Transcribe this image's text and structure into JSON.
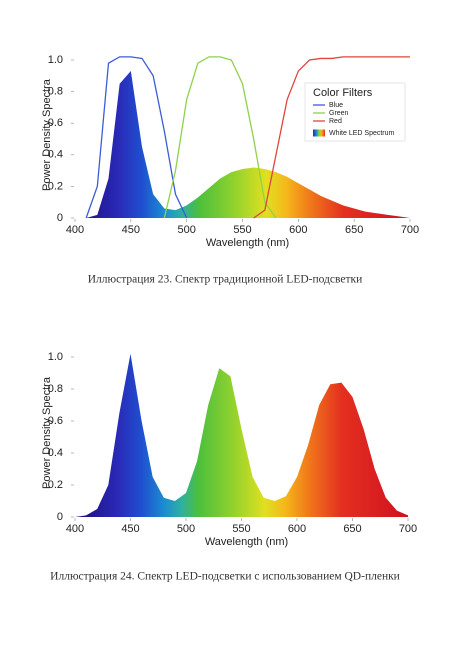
{
  "chart_data": [
    {
      "type": "line",
      "x": [
        400,
        410,
        420,
        430,
        440,
        450,
        460,
        470,
        480,
        490,
        500,
        510,
        520,
        530,
        540,
        550,
        560,
        570,
        580,
        590,
        600,
        610,
        620,
        630,
        640,
        650,
        660,
        670,
        680,
        690,
        700
      ],
      "series": [
        {
          "name": "Blue",
          "color": "#3d5cd8",
          "values": [
            null,
            0,
            0.2,
            0.98,
            1.02,
            1.02,
            1.01,
            0.9,
            0.55,
            0.15,
            0,
            null,
            null,
            null,
            null,
            null,
            null,
            null,
            null,
            null,
            null,
            null,
            null,
            null,
            null,
            null,
            null,
            null,
            null,
            null,
            null
          ]
        },
        {
          "name": "Green",
          "color": "#8fd14a",
          "values": [
            null,
            null,
            null,
            null,
            null,
            null,
            null,
            null,
            0,
            0.3,
            0.75,
            0.98,
            1.02,
            1.02,
            1.0,
            0.85,
            0.5,
            0.1,
            0,
            null,
            null,
            null,
            null,
            null,
            null,
            null,
            null,
            null,
            null,
            null,
            null
          ]
        },
        {
          "name": "Red",
          "color": "#e0443c",
          "values": [
            null,
            null,
            null,
            null,
            null,
            null,
            null,
            null,
            null,
            null,
            null,
            null,
            null,
            null,
            null,
            null,
            0,
            0.05,
            0.4,
            0.75,
            0.93,
            1.0,
            1.01,
            1.01,
            1.02,
            1.02,
            1.02,
            1.02,
            1.02,
            1.02,
            1.02
          ]
        },
        {
          "name": "White LED Spectrum",
          "fill": "spectrum",
          "values": [
            0,
            0,
            0.02,
            0.25,
            0.85,
            0.93,
            0.45,
            0.15,
            0.06,
            0.05,
            0.08,
            0.13,
            0.19,
            0.25,
            0.29,
            0.31,
            0.32,
            0.31,
            0.29,
            0.26,
            0.22,
            0.18,
            0.14,
            0.11,
            0.08,
            0.06,
            0.04,
            0.03,
            0.02,
            0.01,
            0
          ]
        }
      ],
      "legend_title": "Color Filters",
      "xlabel": "Wavelength (nm)",
      "ylabel": "Power Density Spectra",
      "xlim": [
        400,
        700
      ],
      "xticks": [
        400,
        450,
        500,
        550,
        600,
        650,
        700
      ],
      "ylim": [
        0,
        1.05
      ],
      "yticks": [
        0,
        0.2,
        0.4,
        0.6,
        0.8,
        {
          "value": 1,
          "label": "1.0"
        }
      ],
      "caption": "Иллюстрация 23. Спектр традиционной LED-подсветки"
    },
    {
      "type": "area",
      "x": [
        400,
        410,
        420,
        430,
        440,
        450,
        460,
        470,
        480,
        490,
        500,
        510,
        520,
        530,
        540,
        550,
        560,
        570,
        580,
        590,
        600,
        610,
        620,
        630,
        640,
        650,
        660,
        670,
        680,
        690,
        700
      ],
      "values": [
        0,
        0.01,
        0.05,
        0.2,
        0.65,
        1.02,
        0.6,
        0.25,
        0.12,
        0.1,
        0.15,
        0.35,
        0.7,
        0.93,
        0.88,
        0.55,
        0.25,
        0.12,
        0.1,
        0.13,
        0.25,
        0.45,
        0.7,
        0.83,
        0.84,
        0.75,
        0.55,
        0.3,
        0.12,
        0.04,
        0.01
      ],
      "fill": "spectrum",
      "xlabel": "Wavelength (nm)",
      "ylabel": "Power Density Spectra",
      "xlim": [
        400,
        700
      ],
      "xticks": [
        400,
        450,
        500,
        550,
        600,
        650,
        700
      ],
      "ylim": [
        0,
        1.05
      ],
      "yticks": [
        0,
        0.2,
        0.4,
        0.6,
        0.8,
        {
          "value": 1,
          "label": "1.0"
        }
      ],
      "caption": "Иллюстрация 24. Спектр LED-подсветки с использованием QD-пленки"
    }
  ]
}
